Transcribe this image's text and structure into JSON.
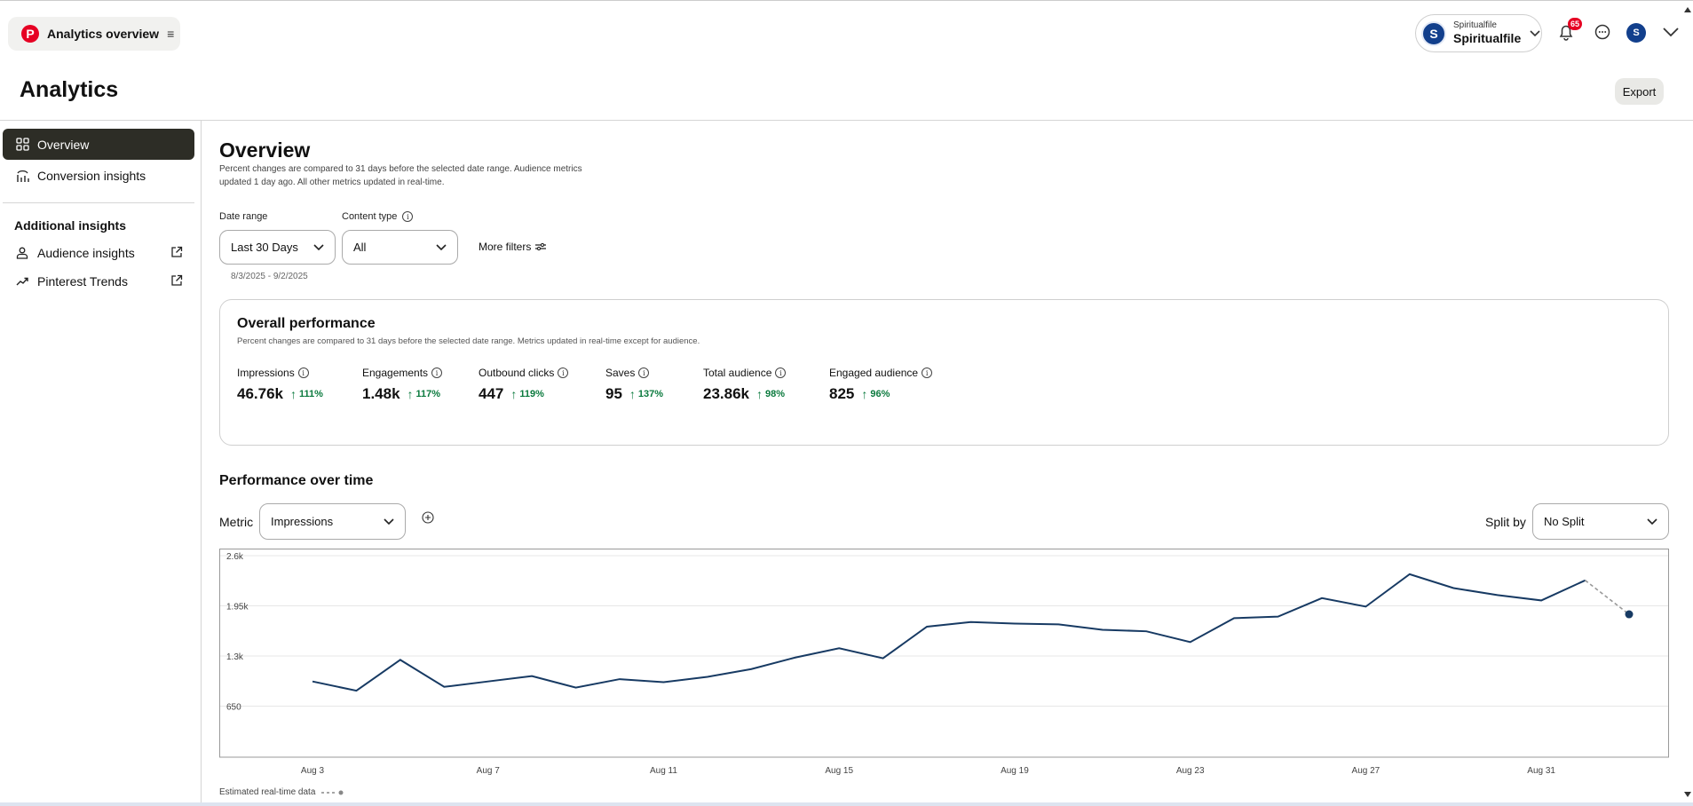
{
  "header": {
    "app_title": "Analytics overview",
    "account_small": "Spiritualfile",
    "account_name": "Spiritualfile",
    "avatar_letter": "S",
    "notification_count": "65"
  },
  "page": {
    "title": "Analytics",
    "export_label": "Export"
  },
  "sidebar": {
    "items": [
      {
        "label": "Overview",
        "icon": "grid-icon",
        "active": true
      },
      {
        "label": "Conversion insights",
        "icon": "conversion-icon"
      }
    ],
    "additional_heading": "Additional insights",
    "additional": [
      {
        "label": "Audience insights",
        "icon": "person-icon"
      },
      {
        "label": "Pinterest Trends",
        "icon": "trend-icon"
      }
    ]
  },
  "overview": {
    "title": "Overview",
    "desc_line1": "Percent changes are compared to 31 days before the selected date range. Audience metrics",
    "desc_line2": "updated 1 day ago. All other metrics updated in real-time.",
    "date_range_label": "Date range",
    "date_range_value": "Last 30 Days",
    "content_type_label": "Content type",
    "content_type_value": "All",
    "more_filters": "More filters",
    "date_sub": "8/3/2025 - 9/2/2025"
  },
  "performance": {
    "title": "Overall performance",
    "desc": "Percent changes are compared to 31 days before the selected date range. Metrics updated in real-time except for audience.",
    "metrics": [
      {
        "label": "Impressions",
        "value": "46.76k",
        "change": "111%"
      },
      {
        "label": "Engagements",
        "value": "1.48k",
        "change": "117%"
      },
      {
        "label": "Outbound clicks",
        "value": "447",
        "change": "119%"
      },
      {
        "label": "Saves",
        "value": "95",
        "change": "137%"
      },
      {
        "label": "Total audience",
        "value": "23.86k",
        "change": "98%"
      },
      {
        "label": "Engaged audience",
        "value": "825",
        "change": "96%"
      }
    ]
  },
  "over_time": {
    "title": "Performance over time",
    "metric_label": "Metric",
    "metric_value": "Impressions",
    "split_label": "Split by",
    "split_value": "No Split",
    "legend": "Estimated real-time data"
  },
  "chart_data": {
    "type": "line",
    "title": "",
    "xlabel": "",
    "ylabel": "",
    "ylim": [
      0,
      2600
    ],
    "y_ticks": [
      "650",
      "1.3k",
      "1.95k",
      "2.6k"
    ],
    "y_tick_values": [
      650,
      1300,
      1950,
      2600
    ],
    "x_tick_labels": [
      "Aug 3",
      "Aug 7",
      "Aug 11",
      "Aug 15",
      "Aug 19",
      "Aug 23",
      "Aug 27",
      "Aug 31"
    ],
    "x": [
      "Aug 3",
      "Aug 4",
      "Aug 5",
      "Aug 6",
      "Aug 7",
      "Aug 8",
      "Aug 9",
      "Aug 10",
      "Aug 11",
      "Aug 12",
      "Aug 13",
      "Aug 14",
      "Aug 15",
      "Aug 16",
      "Aug 17",
      "Aug 18",
      "Aug 19",
      "Aug 20",
      "Aug 21",
      "Aug 22",
      "Aug 23",
      "Aug 24",
      "Aug 25",
      "Aug 26",
      "Aug 27",
      "Aug 28",
      "Aug 29",
      "Aug 30",
      "Aug 31",
      "Sep 1",
      "Sep 2"
    ],
    "series": [
      {
        "values": [
          970,
          850,
          1250,
          900,
          970,
          1040,
          890,
          1000,
          960,
          1030,
          1130,
          1280,
          1400,
          1270,
          1680,
          1740,
          1720,
          1710,
          1640,
          1620,
          1480,
          1790,
          1810,
          2050,
          1940,
          2360,
          2180,
          2090,
          2020,
          2280,
          1840
        ],
        "estimated_from_index": 29
      }
    ],
    "grid": true,
    "accent": "#173a63"
  },
  "colors": {
    "accent": "#173a63",
    "positive": "#0b7a3e",
    "brand": "#e60023"
  }
}
